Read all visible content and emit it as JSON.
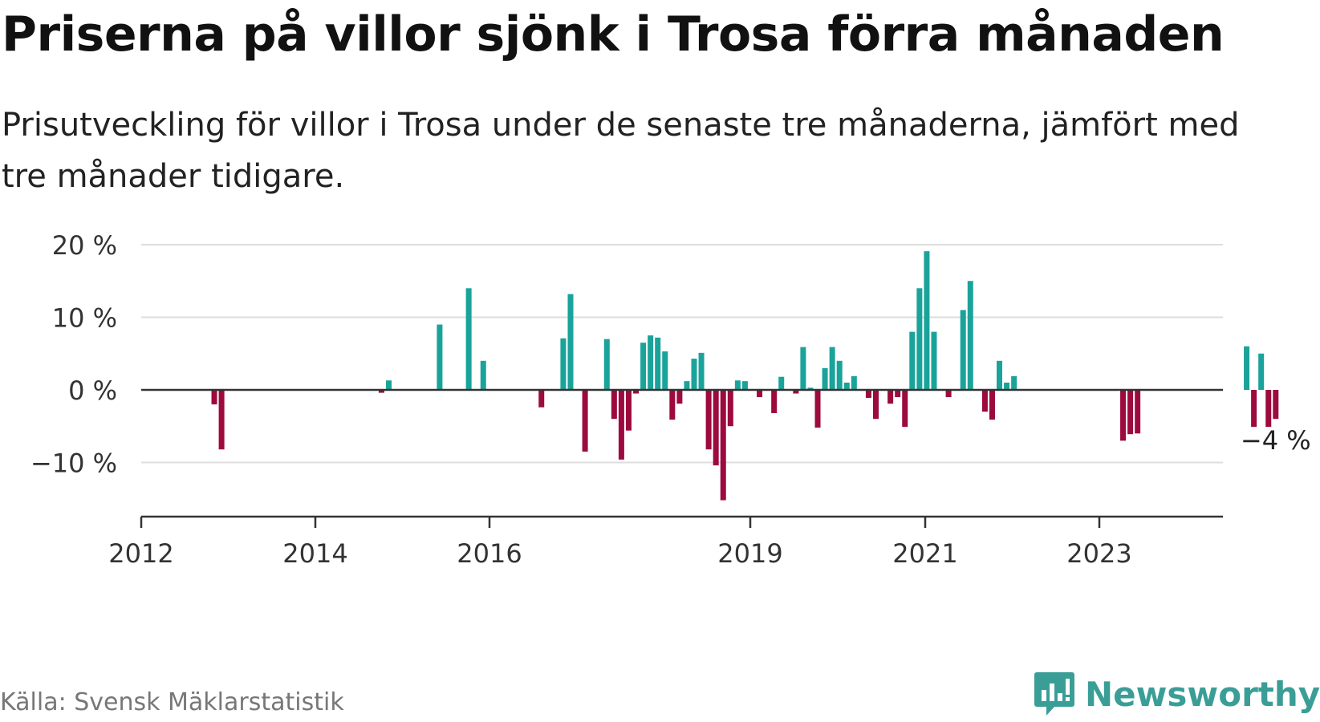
{
  "title": "Priserna på villor sjönk i Trosa förra månaden",
  "subtitle": "Prisutveckling för villor i Trosa under de senaste tre månaderna, jämfört med tre månader tidigare.",
  "source": "Källa: Svensk Mäklarstatistik",
  "brand": {
    "name": "Newsworthy",
    "icon": "newsworthy-logo-icon",
    "color": "#3a9e97"
  },
  "colors": {
    "positive": "#1aa39a",
    "negative": "#9c0a3e",
    "grid": "#dddddd",
    "axis": "#333333"
  },
  "chart_data": {
    "type": "bar",
    "title": "",
    "xlabel": "",
    "ylabel": "",
    "ylim": [
      -17,
      20
    ],
    "yticks": [
      {
        "value": 20,
        "label": "20 %"
      },
      {
        "value": 10,
        "label": "10 %"
      },
      {
        "value": 0,
        "label": "0 %"
      },
      {
        "value": -10,
        "label": "−10 %"
      }
    ],
    "xticks": [
      "2012",
      "2014",
      "2016",
      "2019",
      "2021",
      "2023"
    ],
    "grid": true,
    "last_value_label": "−4 %",
    "values": [
      null,
      null,
      null,
      null,
      null,
      null,
      null,
      null,
      null,
      -2,
      -8.2,
      null,
      null,
      null,
      null,
      null,
      null,
      null,
      null,
      null,
      null,
      null,
      null,
      null,
      null,
      null,
      null,
      null,
      null,
      null,
      null,
      null,
      -0.4,
      1.3,
      null,
      null,
      null,
      null,
      null,
      null,
      9,
      null,
      null,
      null,
      14,
      null,
      4,
      null,
      null,
      null,
      null,
      null,
      null,
      null,
      -2.4,
      null,
      null,
      7.1,
      13.2,
      null,
      -8.5,
      null,
      null,
      7,
      -4,
      -9.6,
      -5.6,
      -0.5,
      6.5,
      7.5,
      7.2,
      5.3,
      -4.1,
      -1.9,
      1.2,
      4.3,
      5.1,
      -8.2,
      -10.4,
      -15.2,
      -5,
      1.3,
      1.2,
      null,
      -1,
      null,
      -3.2,
      1.8,
      null,
      -0.5,
      5.9,
      0.3,
      -5.2,
      3,
      5.9,
      4,
      1,
      1.9,
      null,
      -1.1,
      -4,
      null,
      -1.9,
      -1,
      -5.1,
      8,
      14,
      19.1,
      8,
      null,
      -1,
      null,
      11,
      15,
      null,
      -3,
      -4.1,
      4,
      1,
      1.9,
      null,
      null,
      null,
      null,
      null,
      null,
      null,
      null,
      null,
      null,
      null,
      null,
      null,
      null,
      -7,
      -6.1,
      -6,
      null,
      null,
      null,
      null,
      null,
      null,
      null,
      null,
      null,
      null,
      null,
      null,
      null,
      null,
      6,
      -5.1,
      5,
      -5.1,
      -4
    ]
  }
}
